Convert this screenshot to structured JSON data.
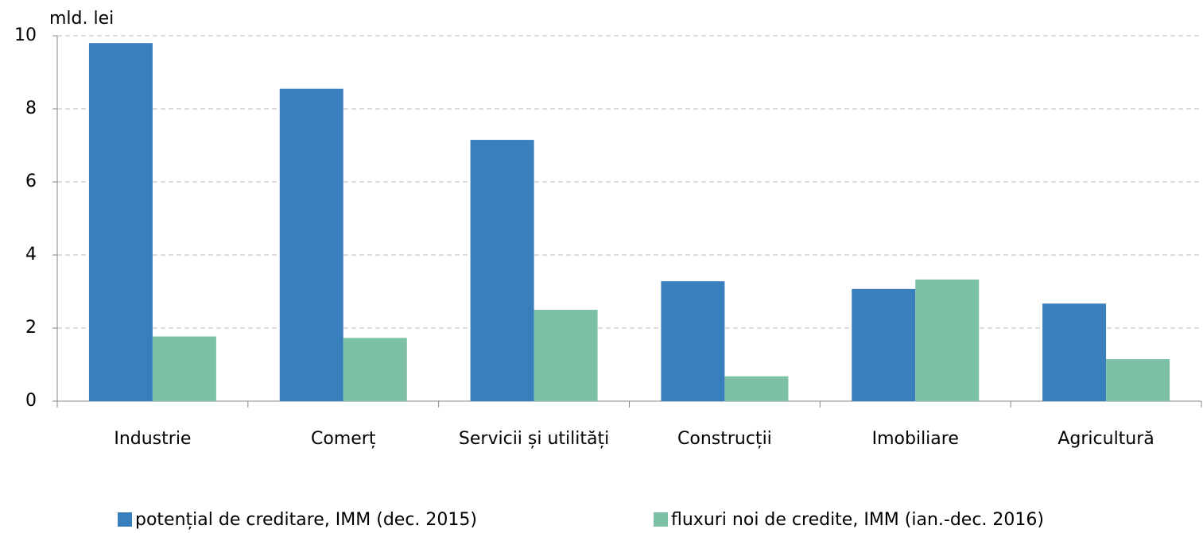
{
  "chart_data": {
    "type": "bar",
    "y_label": "mld. lei",
    "categories": [
      "Industrie",
      "Comerț",
      "Servicii și utilități",
      "Construcții",
      "Imobiliare",
      "Agricultură"
    ],
    "series": [
      {
        "name": "potențial de creditare, IMM (dec. 2015)",
        "color": "#3a7fbd",
        "values": [
          9.8,
          8.55,
          7.15,
          3.28,
          3.07,
          2.67
        ]
      },
      {
        "name": "fluxuri noi de credite, IMM (ian.-dec. 2016)",
        "color": "#7cc1a6",
        "values": [
          1.77,
          1.73,
          2.5,
          0.68,
          3.33,
          1.15
        ]
      }
    ],
    "ylim": [
      0,
      10
    ],
    "yticks": [
      0,
      2,
      4,
      6,
      8,
      10
    ],
    "grid": true
  }
}
